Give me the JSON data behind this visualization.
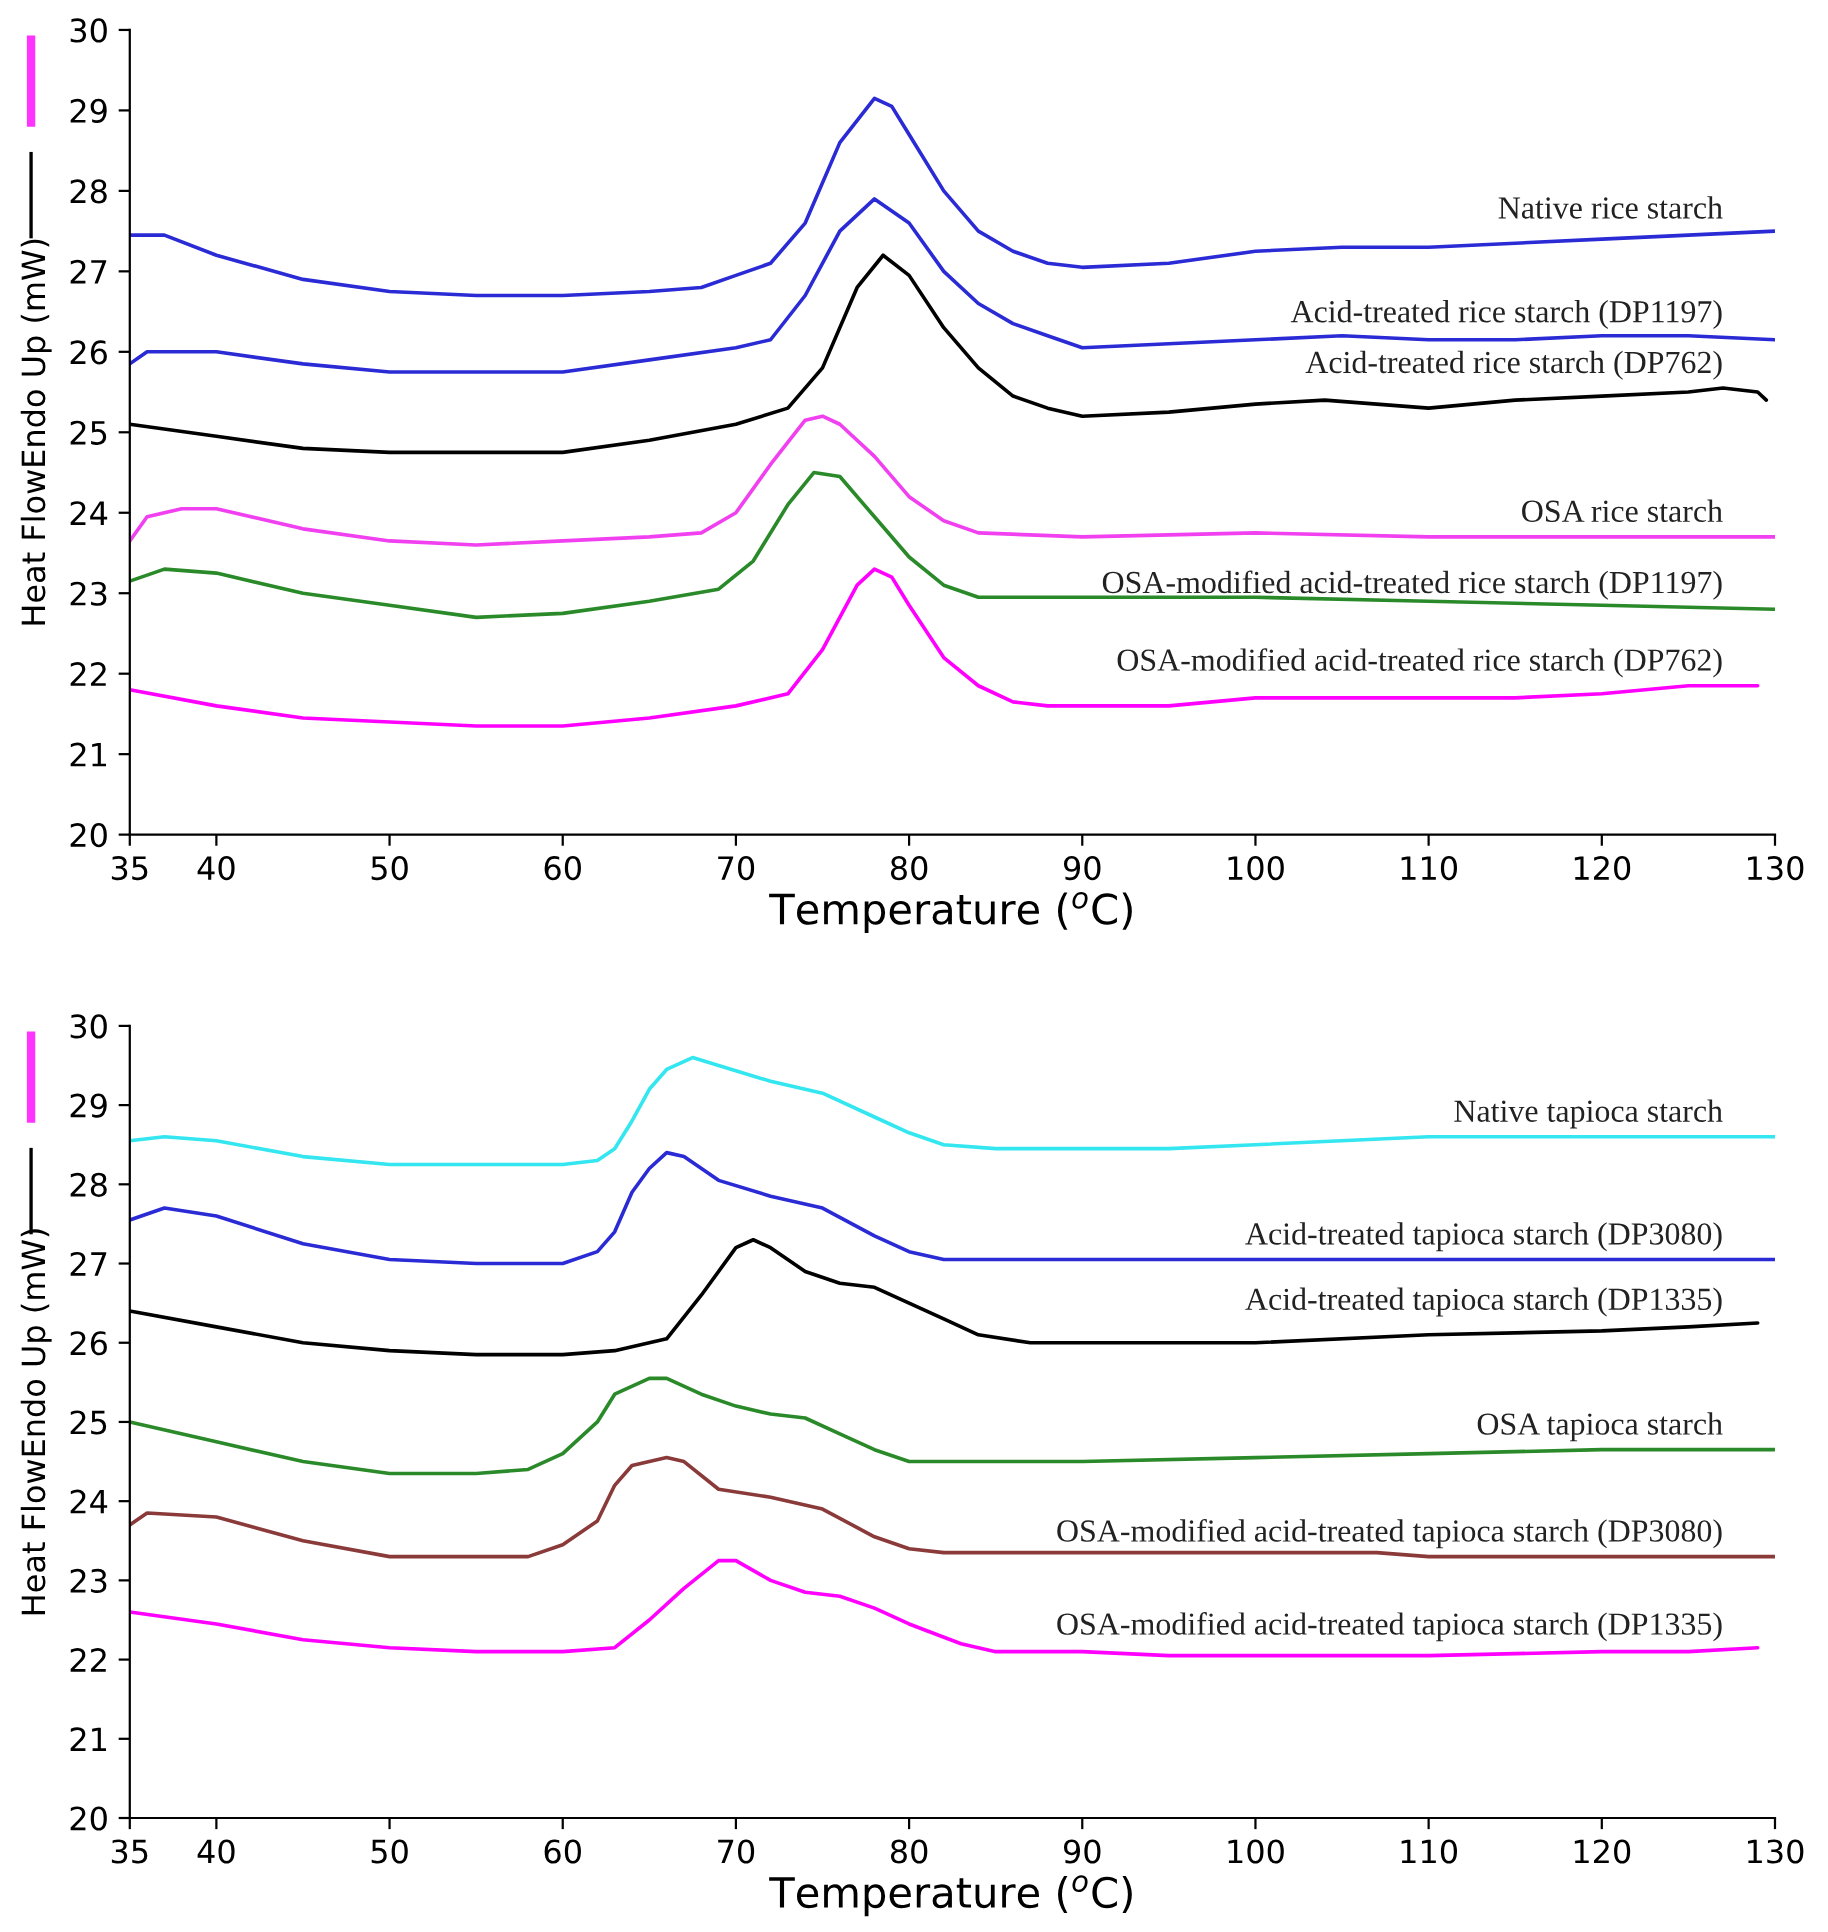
{
  "chart_data": [
    {
      "type": "line",
      "xlabel": "Temperature ($^{o}$C)",
      "ylabel": "Heat FlowEndo Up (mW)",
      "xlim": [
        35,
        130
      ],
      "xticks": [
        35,
        40,
        50,
        60,
        70,
        80,
        90,
        100,
        110,
        120,
        130
      ],
      "ylim": [
        20,
        30
      ],
      "yticks": [
        20,
        21,
        22,
        23,
        24,
        25,
        26,
        27,
        28,
        29,
        30
      ],
      "grid": false,
      "series": [
        {
          "name": "Native rice starch",
          "color": "#2b2bd6",
          "x": [
            35,
            37,
            40,
            45,
            50,
            55,
            60,
            65,
            68,
            70,
            72,
            74,
            76,
            78,
            79,
            80,
            82,
            84,
            86,
            88,
            90,
            95,
            100,
            105,
            110,
            115,
            120,
            125,
            130
          ],
          "values": [
            27.45,
            27.45,
            27.2,
            26.9,
            26.75,
            26.7,
            26.7,
            26.75,
            26.8,
            26.95,
            27.1,
            27.6,
            28.6,
            29.15,
            29.05,
            28.7,
            28.0,
            27.5,
            27.25,
            27.1,
            27.05,
            27.1,
            27.25,
            27.3,
            27.3,
            27.35,
            27.4,
            27.45,
            27.5
          ]
        },
        {
          "name": "Acid-treated rice starch (DP1197)",
          "color": "#2b2bd6",
          "x": [
            35,
            36,
            40,
            45,
            50,
            55,
            60,
            65,
            70,
            72,
            74,
            76,
            78,
            80,
            82,
            84,
            86,
            88,
            90,
            95,
            100,
            105,
            110,
            115,
            120,
            125,
            130
          ],
          "values": [
            25.85,
            26.0,
            26.0,
            25.85,
            25.75,
            25.75,
            25.75,
            25.9,
            26.05,
            26.15,
            26.7,
            27.5,
            27.9,
            27.6,
            27.0,
            26.6,
            26.35,
            26.2,
            26.05,
            26.1,
            26.15,
            26.2,
            26.15,
            26.15,
            26.2,
            26.2,
            26.15
          ]
        },
        {
          "name": "Acid-treated rice starch (DP762)",
          "color": "#000000",
          "x": [
            35,
            40,
            45,
            50,
            55,
            60,
            65,
            70,
            73,
            75,
            77,
            78.5,
            80,
            82,
            84,
            86,
            88,
            90,
            95,
            100,
            104,
            110,
            115,
            120,
            125,
            127,
            129,
            129.5
          ],
          "values": [
            25.1,
            24.95,
            24.8,
            24.75,
            24.75,
            24.75,
            24.9,
            25.1,
            25.3,
            25.8,
            26.8,
            27.2,
            26.95,
            26.3,
            25.8,
            25.45,
            25.3,
            25.2,
            25.25,
            25.35,
            25.4,
            25.3,
            25.4,
            25.45,
            25.5,
            25.55,
            25.5,
            25.4
          ]
        },
        {
          "name": "OSA rice starch",
          "color": "#f040f0",
          "x": [
            35,
            36,
            38,
            40,
            45,
            50,
            55,
            60,
            65,
            68,
            70,
            72,
            74,
            75,
            76,
            78,
            80,
            82,
            84,
            90,
            100,
            110,
            120,
            130
          ],
          "values": [
            23.65,
            23.95,
            24.05,
            24.05,
            23.8,
            23.65,
            23.6,
            23.65,
            23.7,
            23.75,
            24.0,
            24.6,
            25.15,
            25.2,
            25.1,
            24.7,
            24.2,
            23.9,
            23.75,
            23.7,
            23.75,
            23.7,
            23.7,
            23.7
          ]
        },
        {
          "name": "OSA-modified acid-treated rice starch (DP1197)",
          "color": "#2a8a2a",
          "x": [
            35,
            37,
            40,
            45,
            50,
            55,
            60,
            65,
            69,
            71,
            73,
            74.5,
            76,
            78,
            80,
            82,
            84,
            90,
            100,
            110,
            120,
            130
          ],
          "values": [
            23.15,
            23.3,
            23.25,
            23.0,
            22.85,
            22.7,
            22.75,
            22.9,
            23.05,
            23.4,
            24.1,
            24.5,
            24.45,
            23.95,
            23.45,
            23.1,
            22.95,
            22.95,
            22.95,
            22.9,
            22.85,
            22.8
          ]
        },
        {
          "name": "OSA-modified acid-treated rice starch (DP762)",
          "color": "#ff00ff",
          "x": [
            35,
            40,
            45,
            50,
            55,
            60,
            65,
            70,
            73,
            75,
            77,
            78,
            79,
            80,
            82,
            84,
            86,
            88,
            90,
            95,
            100,
            110,
            115,
            120,
            125,
            129
          ],
          "values": [
            21.8,
            21.6,
            21.45,
            21.4,
            21.35,
            21.35,
            21.45,
            21.6,
            21.75,
            22.3,
            23.1,
            23.3,
            23.2,
            22.85,
            22.2,
            21.85,
            21.65,
            21.6,
            21.6,
            21.6,
            21.7,
            21.7,
            21.7,
            21.75,
            21.85,
            21.85
          ]
        }
      ]
    },
    {
      "type": "line",
      "xlabel": "Temperature ($^{o}$C)",
      "ylabel": "Heat FlowEndo Up (mW)",
      "xlim": [
        35,
        130
      ],
      "xticks": [
        35,
        40,
        50,
        60,
        70,
        80,
        90,
        100,
        110,
        120,
        130
      ],
      "ylim": [
        20,
        30
      ],
      "yticks": [
        20,
        21,
        22,
        23,
        24,
        25,
        26,
        27,
        28,
        29,
        30
      ],
      "grid": false,
      "series": [
        {
          "name": "Native tapioca starch",
          "color": "#33e6f0",
          "x": [
            35,
            37,
            40,
            45,
            50,
            55,
            60,
            62,
            63,
            64,
            65,
            66,
            67.5,
            69,
            72,
            75,
            78,
            80,
            82,
            85,
            90,
            95,
            100,
            110,
            120,
            130
          ],
          "values": [
            28.55,
            28.6,
            28.55,
            28.35,
            28.25,
            28.25,
            28.25,
            28.3,
            28.45,
            28.8,
            29.2,
            29.45,
            29.6,
            29.5,
            29.3,
            29.15,
            28.85,
            28.65,
            28.5,
            28.45,
            28.45,
            28.45,
            28.5,
            28.6,
            28.6,
            28.6
          ]
        },
        {
          "name": "Acid-treated tapioca starch (DP3080)",
          "color": "#2b2bd6",
          "x": [
            35,
            37,
            40,
            45,
            50,
            55,
            60,
            62,
            63,
            64,
            65,
            66,
            67,
            69,
            72,
            75,
            78,
            80,
            82,
            85,
            90,
            100,
            110,
            120,
            130
          ],
          "values": [
            27.55,
            27.7,
            27.6,
            27.25,
            27.05,
            27.0,
            27.0,
            27.15,
            27.4,
            27.9,
            28.2,
            28.4,
            28.35,
            28.05,
            27.85,
            27.7,
            27.35,
            27.15,
            27.05,
            27.05,
            27.05,
            27.05,
            27.05,
            27.05,
            27.05
          ]
        },
        {
          "name": "Acid-treated tapioca starch (DP1335)",
          "color": "#000000",
          "x": [
            35,
            40,
            45,
            50,
            55,
            60,
            63,
            66,
            68,
            70,
            71,
            72,
            74,
            76,
            78,
            80,
            82,
            84,
            87,
            90,
            100,
            110,
            120,
            125,
            129
          ],
          "values": [
            26.4,
            26.2,
            26.0,
            25.9,
            25.85,
            25.85,
            25.9,
            26.05,
            26.6,
            27.2,
            27.3,
            27.2,
            26.9,
            26.75,
            26.7,
            26.5,
            26.3,
            26.1,
            26.0,
            26.0,
            26.0,
            26.1,
            26.15,
            26.2,
            26.25
          ]
        },
        {
          "name": "OSA tapioca starch",
          "color": "#2a8a2a",
          "x": [
            35,
            40,
            45,
            50,
            55,
            58,
            60,
            62,
            63,
            65,
            66,
            68,
            70,
            72,
            74,
            76,
            78,
            80,
            82,
            90,
            100,
            110,
            120,
            130
          ],
          "values": [
            25.0,
            24.75,
            24.5,
            24.35,
            24.35,
            24.4,
            24.6,
            25.0,
            25.35,
            25.55,
            25.55,
            25.35,
            25.2,
            25.1,
            25.05,
            24.85,
            24.65,
            24.5,
            24.5,
            24.5,
            24.55,
            24.6,
            24.65,
            24.65
          ]
        },
        {
          "name": "OSA-modified acid-treated tapioca starch (DP3080)",
          "color": "#8b3a3a",
          "x": [
            35,
            36,
            40,
            45,
            50,
            55,
            58,
            60,
            62,
            63,
            64,
            66,
            67,
            69,
            72,
            75,
            78,
            80,
            82,
            90,
            100,
            107,
            110,
            120,
            130
          ],
          "values": [
            23.7,
            23.85,
            23.8,
            23.5,
            23.3,
            23.3,
            23.3,
            23.45,
            23.75,
            24.2,
            24.45,
            24.55,
            24.5,
            24.15,
            24.05,
            23.9,
            23.55,
            23.4,
            23.35,
            23.35,
            23.35,
            23.35,
            23.3,
            23.3,
            23.3
          ]
        },
        {
          "name": "OSA-modified acid-treated tapioca starch (DP1335)",
          "color": "#ff00ff",
          "x": [
            35,
            40,
            45,
            50,
            55,
            60,
            63,
            65,
            67,
            69,
            70,
            72,
            74,
            76,
            78,
            80,
            83,
            85,
            90,
            95,
            100,
            110,
            120,
            125,
            129
          ],
          "values": [
            22.6,
            22.45,
            22.25,
            22.15,
            22.1,
            22.1,
            22.15,
            22.5,
            22.9,
            23.25,
            23.25,
            23.0,
            22.85,
            22.8,
            22.65,
            22.45,
            22.2,
            22.1,
            22.1,
            22.05,
            22.05,
            22.05,
            22.1,
            22.1,
            22.15
          ]
        }
      ]
    }
  ]
}
